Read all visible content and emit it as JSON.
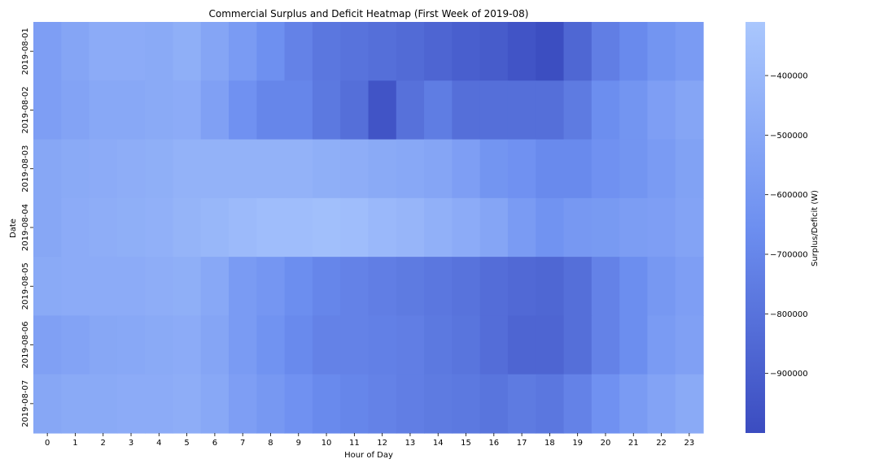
{
  "chart_data": {
    "type": "heatmap",
    "title": "Commercial Surplus and Deficit Heatmap (First Week of 2019-08)",
    "xlabel": "Hour of Day",
    "ylabel": "Date",
    "colorbar_label": "Surplus/Deficit (W)",
    "x": [
      "0",
      "1",
      "2",
      "3",
      "4",
      "5",
      "6",
      "7",
      "8",
      "9",
      "10",
      "11",
      "12",
      "13",
      "14",
      "15",
      "16",
      "17",
      "18",
      "19",
      "20",
      "21",
      "22",
      "23"
    ],
    "y": [
      "2019-08-01",
      "2019-08-02",
      "2019-08-03",
      "2019-08-04",
      "2019-08-05",
      "2019-08-06",
      "2019-08-07"
    ],
    "values": [
      [
        -560000,
        -520000,
        -480000,
        -480000,
        -490000,
        -460000,
        -520000,
        -580000,
        -650000,
        -720000,
        -780000,
        -800000,
        -820000,
        -840000,
        -870000,
        -900000,
        -920000,
        -960000,
        -990000,
        -860000,
        -740000,
        -680000,
        -620000,
        -580000
      ],
      [
        -560000,
        -530000,
        -500000,
        -500000,
        -490000,
        -480000,
        -550000,
        -640000,
        -700000,
        -700000,
        -770000,
        -820000,
        -960000,
        -810000,
        -750000,
        -820000,
        -820000,
        -820000,
        -820000,
        -760000,
        -660000,
        -620000,
        -560000,
        -520000
      ],
      [
        -510000,
        -490000,
        -480000,
        -470000,
        -460000,
        -440000,
        -440000,
        -440000,
        -440000,
        -440000,
        -460000,
        -470000,
        -490000,
        -500000,
        -520000,
        -560000,
        -620000,
        -640000,
        -680000,
        -680000,
        -640000,
        -620000,
        -580000,
        -540000
      ],
      [
        -510000,
        -480000,
        -470000,
        -460000,
        -450000,
        -430000,
        -410000,
        -390000,
        -370000,
        -370000,
        -360000,
        -370000,
        -400000,
        -420000,
        -450000,
        -480000,
        -520000,
        -580000,
        -630000,
        -600000,
        -590000,
        -570000,
        -560000,
        -530000
      ],
      [
        -490000,
        -480000,
        -480000,
        -480000,
        -470000,
        -460000,
        -500000,
        -580000,
        -610000,
        -660000,
        -700000,
        -720000,
        -740000,
        -760000,
        -780000,
        -800000,
        -830000,
        -850000,
        -860000,
        -820000,
        -720000,
        -660000,
        -600000,
        -560000
      ],
      [
        -550000,
        -530000,
        -510000,
        -500000,
        -490000,
        -480000,
        -520000,
        -580000,
        -630000,
        -680000,
        -720000,
        -720000,
        -730000,
        -740000,
        -770000,
        -790000,
        -830000,
        -870000,
        -870000,
        -820000,
        -720000,
        -660000,
        -580000,
        -550000
      ],
      [
        -510000,
        -490000,
        -490000,
        -480000,
        -480000,
        -470000,
        -500000,
        -560000,
        -600000,
        -640000,
        -680000,
        -700000,
        -720000,
        -740000,
        -760000,
        -770000,
        -790000,
        -760000,
        -780000,
        -720000,
        -640000,
        -580000,
        -530000,
        -490000
      ]
    ],
    "vmin": -1000000,
    "vmax": -310000,
    "colorbar_ticks": [
      -400000,
      -500000,
      -600000,
      -700000,
      -800000,
      -900000
    ],
    "colorbar_tick_labels": [
      "−400000",
      "−500000",
      "−600000",
      "−700000",
      "−800000",
      "−900000"
    ],
    "colors": {
      "low": "#3b4cc0",
      "mid": "#6d8ff0",
      "high": "#aac7fd"
    },
    "grid": false,
    "legend": "colorbar-right"
  }
}
